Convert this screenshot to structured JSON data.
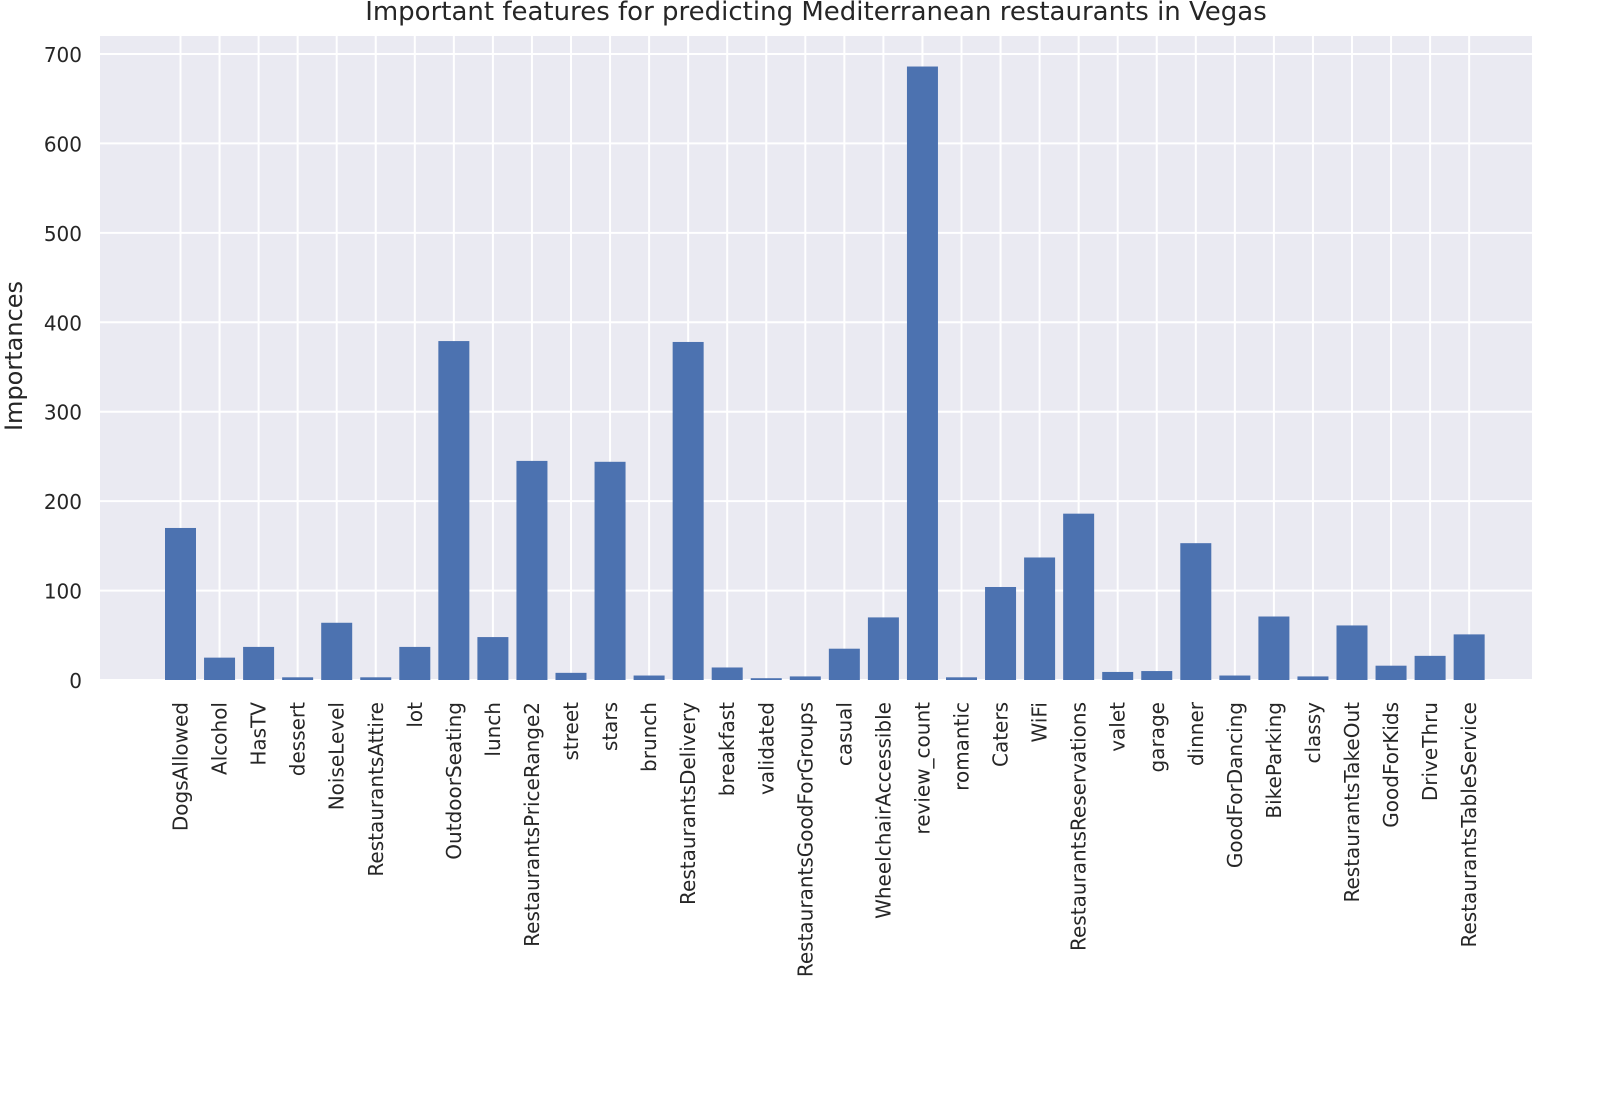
{
  "chart_data": {
    "type": "bar",
    "title": "Important features for predicting Mediterranean restaurants in Vegas",
    "xlabel": "",
    "ylabel": "Importances",
    "ylim": [
      0,
      700
    ],
    "yticks": [
      0,
      100,
      200,
      300,
      400,
      500,
      600,
      700
    ],
    "grid": true,
    "bar_color": "#4c72b0",
    "background_color": "#eaeaf2",
    "categories": [
      "DogsAllowed",
      "Alcohol",
      "HasTV",
      "dessert",
      "NoiseLevel",
      "RestaurantsAttire",
      "lot",
      "OutdoorSeating",
      "lunch",
      "RestaurantsPriceRange2",
      "street",
      "stars",
      "brunch",
      "RestaurantsDelivery",
      "breakfast",
      "validated",
      "RestaurantsGoodForGroups",
      "casual",
      "WheelchairAccessible",
      "review_count",
      "romantic",
      "Caters",
      "WiFi",
      "RestaurantsReservations",
      "valet",
      "garage",
      "dinner",
      "GoodForDancing",
      "BikeParking",
      "classy",
      "RestaurantsTakeOut",
      "GoodForKids",
      "DriveThru",
      "RestaurantsTableService"
    ],
    "values": [
      170,
      25,
      37,
      3,
      64,
      3,
      37,
      379,
      48,
      245,
      8,
      244,
      5,
      378,
      14,
      2,
      4,
      35,
      70,
      686,
      3,
      104,
      137,
      186,
      9,
      10,
      153,
      5,
      71,
      4,
      61,
      16,
      27,
      51
    ]
  }
}
